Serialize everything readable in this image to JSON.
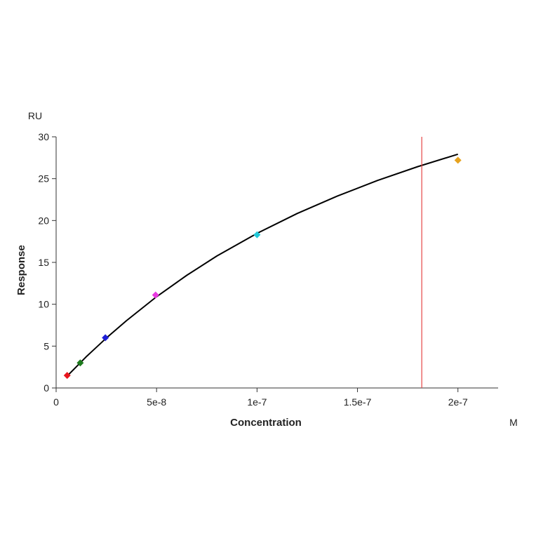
{
  "chart_data": {
    "type": "scatter",
    "title": "",
    "xlabel": "Concentration",
    "ylabel": "Response",
    "x_unit": "M",
    "y_unit": "RU",
    "xlim": [
      0,
      2.2e-07
    ],
    "ylim": [
      0,
      30
    ],
    "x_ticks": [
      0,
      5e-08,
      1e-07,
      1.5e-07,
      2e-07
    ],
    "x_tick_labels": [
      "0",
      "5e-8",
      "1e-7",
      "1.5e-7",
      "2e-7"
    ],
    "y_ticks": [
      0,
      5,
      10,
      15,
      20,
      25,
      30
    ],
    "y_tick_labels": [
      "0",
      "5",
      "10",
      "15",
      "20",
      "25",
      "30"
    ],
    "grid": false,
    "points": [
      {
        "x": 5.5e-09,
        "y": 1.5,
        "color": "#e8161e"
      },
      {
        "x": 1.2e-08,
        "y": 3.0,
        "color": "#1d7a1d"
      },
      {
        "x": 2.45e-08,
        "y": 6.0,
        "color": "#1f1fd6"
      },
      {
        "x": 4.95e-08,
        "y": 11.1,
        "color": "#e83ae0"
      },
      {
        "x": 1e-07,
        "y": 18.3,
        "color": "#22c8d8"
      },
      {
        "x": 2e-07,
        "y": 27.2,
        "color": "#e6a21e"
      }
    ],
    "fit_curve": {
      "model": "steady-state affinity",
      "x": [
        5.5e-09,
        1.5e-08,
        2.5e-08,
        3.5e-08,
        5e-08,
        6.5e-08,
        8e-08,
        1e-07,
        1.2e-07,
        1.4e-07,
        1.6e-07,
        1.8e-07,
        2e-07
      ],
      "y": [
        1.43,
        3.74,
        5.97,
        8.04,
        10.9,
        13.45,
        15.76,
        18.47,
        20.84,
        22.93,
        24.79,
        26.44,
        27.92
      ],
      "color": "#000000"
    },
    "marker_line": {
      "x": 1.82e-07,
      "color": "#e64545"
    }
  }
}
